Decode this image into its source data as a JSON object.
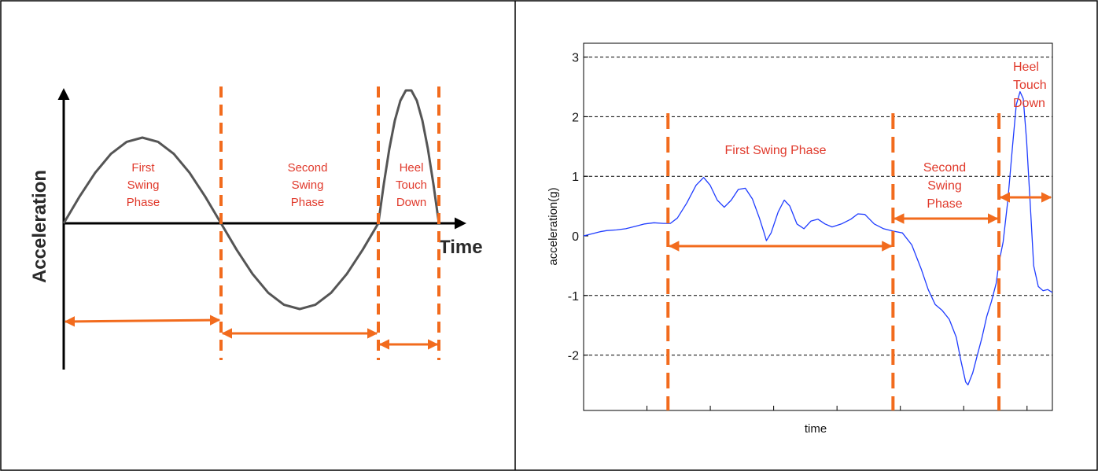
{
  "colors": {
    "orange": "#f26b1d",
    "phase_text": "#e0392b",
    "sine": "#555555",
    "signal": "#1f3cff",
    "axis": "#000000",
    "grid": "#000000",
    "border": "#000000"
  },
  "chart_data": [
    {
      "type": "line",
      "panel": "left",
      "title": "",
      "xlabel": "Time",
      "ylabel": "Acceleration",
      "grid": false,
      "series": [
        {
          "values": [
            [
              0.0,
              0.0
            ],
            [
              0.1,
              0.31
            ],
            [
              0.2,
              0.59
            ],
            [
              0.3,
              0.81
            ],
            [
              0.4,
              0.95
            ],
            [
              0.5,
              1.0
            ],
            [
              0.6,
              0.95
            ],
            [
              0.7,
              0.81
            ],
            [
              0.8,
              0.59
            ],
            [
              0.9,
              0.31
            ],
            [
              1.0,
              0.0
            ],
            [
              1.1,
              -0.31
            ],
            [
              1.2,
              -0.59
            ],
            [
              1.3,
              -0.81
            ],
            [
              1.4,
              -0.95
            ],
            [
              1.5,
              -1.0
            ],
            [
              1.6,
              -0.95
            ],
            [
              1.7,
              -0.81
            ],
            [
              1.8,
              -0.59
            ],
            [
              1.9,
              -0.31
            ],
            [
              2.0,
              0.0
            ],
            [
              2.05,
              0.46
            ],
            [
              2.1,
              0.87
            ],
            [
              2.15,
              1.2
            ],
            [
              2.2,
              1.43
            ],
            [
              2.25,
              1.55
            ],
            [
              2.3,
              1.55
            ],
            [
              2.35,
              1.43
            ],
            [
              2.4,
              1.2
            ],
            [
              2.45,
              0.87
            ],
            [
              2.5,
              0.46
            ],
            [
              2.55,
              0.0
            ]
          ]
        }
      ],
      "phase_boundaries": [
        0,
        1.0,
        2.0,
        2.55
      ],
      "phases": [
        {
          "label_lines": [
            "First",
            "Swing",
            "Phase"
          ],
          "from": 0,
          "to": 1.0
        },
        {
          "label_lines": [
            "Second",
            "Swing",
            "Phase"
          ],
          "from": 1.0,
          "to": 2.0
        },
        {
          "label_lines": [
            "Heel",
            "Touch",
            "Down"
          ],
          "from": 2.0,
          "to": 2.55
        }
      ]
    },
    {
      "type": "line",
      "panel": "right",
      "title": "",
      "xlabel": "time",
      "ylabel": "acceleration(g)",
      "ylim": [
        -3,
        3
      ],
      "xlim": [
        0,
        100
      ],
      "yticks": [
        "3",
        "2",
        "1",
        "0",
        "-1",
        "-2"
      ],
      "ytick_values": [
        3,
        2,
        1,
        0,
        -1,
        -2
      ],
      "grid": true,
      "series": [
        {
          "values": [
            [
              0,
              0.0
            ],
            [
              1,
              0.02
            ],
            [
              2,
              0.04
            ],
            [
              3.5,
              0.07
            ],
            [
              5,
              0.09
            ],
            [
              7,
              0.1
            ],
            [
              9,
              0.12
            ],
            [
              11,
              0.16
            ],
            [
              13,
              0.2
            ],
            [
              15,
              0.22
            ],
            [
              17,
              0.21
            ],
            [
              18.5,
              0.21
            ],
            [
              20,
              0.3
            ],
            [
              22,
              0.55
            ],
            [
              24,
              0.85
            ],
            [
              25.6,
              0.98
            ],
            [
              27,
              0.85
            ],
            [
              28.5,
              0.6
            ],
            [
              30,
              0.48
            ],
            [
              31.5,
              0.6
            ],
            [
              33,
              0.78
            ],
            [
              34.5,
              0.8
            ],
            [
              36,
              0.62
            ],
            [
              37.5,
              0.3
            ],
            [
              38.5,
              0.05
            ],
            [
              39,
              -0.08
            ],
            [
              40,
              0.05
            ],
            [
              41.5,
              0.4
            ],
            [
              42.8,
              0.6
            ],
            [
              44,
              0.5
            ],
            [
              45.5,
              0.2
            ],
            [
              47,
              0.12
            ],
            [
              48.5,
              0.25
            ],
            [
              50,
              0.28
            ],
            [
              51.5,
              0.2
            ],
            [
              53,
              0.15
            ],
            [
              55,
              0.2
            ],
            [
              57,
              0.28
            ],
            [
              58.5,
              0.37
            ],
            [
              60,
              0.36
            ],
            [
              62,
              0.2
            ],
            [
              64,
              0.12
            ],
            [
              66,
              0.08
            ],
            [
              68,
              0.05
            ],
            [
              70,
              -0.15
            ],
            [
              72,
              -0.55
            ],
            [
              73.5,
              -0.9
            ],
            [
              75,
              -1.15
            ],
            [
              76.5,
              -1.25
            ],
            [
              78,
              -1.4
            ],
            [
              79.5,
              -1.7
            ],
            [
              80.5,
              -2.1
            ],
            [
              81.5,
              -2.45
            ],
            [
              82,
              -2.5
            ],
            [
              83,
              -2.3
            ],
            [
              84,
              -2.0
            ],
            [
              85,
              -1.7
            ],
            [
              86,
              -1.35
            ],
            [
              87,
              -1.1
            ],
            [
              88,
              -0.8
            ],
            [
              88.6,
              -0.45
            ],
            [
              89.5,
              -0.1
            ],
            [
              90.5,
              0.6
            ],
            [
              91.5,
              1.5
            ],
            [
              92.3,
              2.2
            ],
            [
              93.1,
              2.42
            ],
            [
              93.8,
              2.3
            ],
            [
              94.5,
              1.6
            ],
            [
              95.3,
              0.5
            ],
            [
              96,
              -0.5
            ],
            [
              97,
              -0.85
            ],
            [
              98,
              -0.92
            ],
            [
              99,
              -0.9
            ],
            [
              100,
              -0.95
            ]
          ]
        }
      ],
      "phase_boundaries": [
        18,
        66,
        88.6
      ],
      "phases": [
        {
          "label_lines": [
            "First Swing Phase"
          ],
          "from": 18,
          "to": 66
        },
        {
          "label_lines": [
            "Second",
            "Swing",
            "Phase"
          ],
          "from": 66,
          "to": 88.6
        },
        {
          "label_lines": [
            "Heel",
            "Touch",
            "Down"
          ],
          "from": 88.6,
          "to": 100
        }
      ]
    }
  ]
}
